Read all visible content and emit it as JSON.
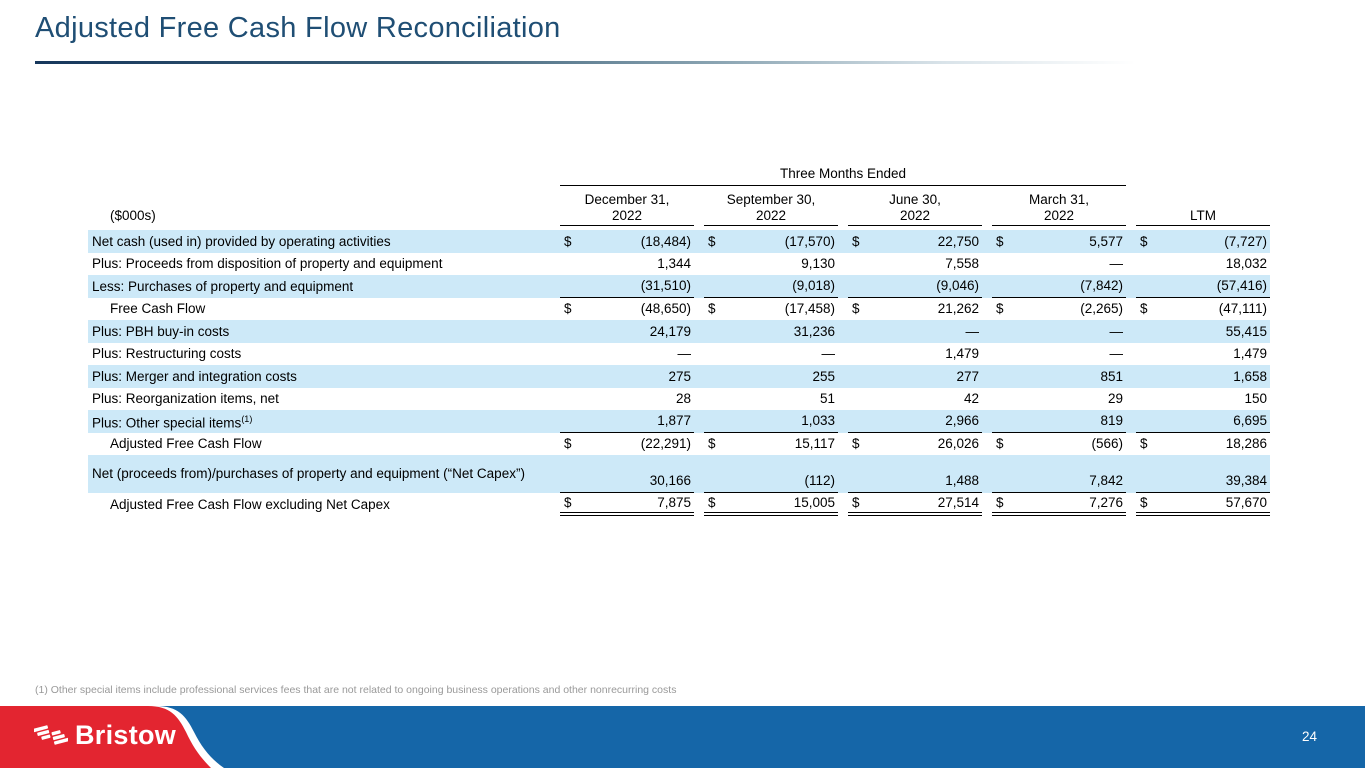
{
  "slide": {
    "title": "Adjusted Free Cash Flow Reconciliation",
    "footnote": "(1) Other special items include professional services fees that are not related to ongoing business operations and other nonrecurring costs",
    "page_number": "24",
    "logo_text": "Bristow"
  },
  "table": {
    "units_label": "($000s)",
    "span_header": "Three Months Ended",
    "currency_symbol": "$",
    "columns": [
      {
        "line1": "December 31,",
        "line2": "2022"
      },
      {
        "line1": "September 30,",
        "line2": "2022"
      },
      {
        "line1": "June 30,",
        "line2": "2022"
      },
      {
        "line1": "March 31,",
        "line2": "2022"
      }
    ],
    "ltm_label": "LTM",
    "rows": [
      {
        "label": "Net cash (used in) provided by operating activities",
        "highlight": true,
        "dollar": true,
        "values": [
          "(18,484)",
          "(17,570)",
          "22,750",
          "5,577",
          "(7,727)"
        ]
      },
      {
        "label": "Plus: Proceeds from disposition of property and equipment",
        "highlight": false,
        "values": [
          "1,344",
          "9,130",
          "7,558",
          "—",
          "18,032"
        ]
      },
      {
        "label": "Less: Purchases of property and equipment",
        "highlight": true,
        "border": "single",
        "values": [
          "(31,510)",
          "(9,018)",
          "(9,046)",
          "(7,842)",
          "(57,416)"
        ]
      },
      {
        "label": "Free Cash Flow",
        "indent": true,
        "highlight": false,
        "dollar": true,
        "values": [
          "(48,650)",
          "(17,458)",
          "21,262",
          "(2,265)",
          "(47,111)"
        ]
      },
      {
        "label": "Plus: PBH buy-in costs",
        "highlight": true,
        "values": [
          "24,179",
          "31,236",
          "—",
          "—",
          "55,415"
        ]
      },
      {
        "label": "Plus: Restructuring costs",
        "highlight": false,
        "values": [
          "—",
          "—",
          "1,479",
          "—",
          "1,479"
        ]
      },
      {
        "label": "Plus: Merger and integration costs",
        "highlight": true,
        "values": [
          "275",
          "255",
          "277",
          "851",
          "1,658"
        ]
      },
      {
        "label": "Plus: Reorganization items, net",
        "highlight": false,
        "values": [
          "28",
          "51",
          "42",
          "29",
          "150"
        ]
      },
      {
        "label": "Plus: Other special items",
        "sup": "(1)",
        "highlight": true,
        "border": "single",
        "values": [
          "1,877",
          "1,033",
          "2,966",
          "819",
          "6,695"
        ]
      },
      {
        "label": "Adjusted Free Cash Flow",
        "indent": true,
        "highlight": false,
        "dollar": true,
        "values": [
          "(22,291)",
          "15,117",
          "26,026",
          "(566)",
          "18,286"
        ]
      },
      {
        "label": "Net (proceeds from)/purchases of property and equipment (“Net Capex”)",
        "highlight": true,
        "tall": true,
        "border": "single",
        "values": [
          "30,166",
          "(112)",
          "1,488",
          "7,842",
          "39,384"
        ]
      },
      {
        "label": "Adjusted Free Cash Flow excluding Net Capex",
        "indent": true,
        "highlight": false,
        "dollar": true,
        "border": "double",
        "values": [
          "7,875",
          "15,005",
          "27,514",
          "7,276",
          "57,670"
        ]
      }
    ]
  },
  "colors": {
    "title_blue": "#1f4e74",
    "row_highlight": "#cde9f8",
    "footer_blue": "#1566a8",
    "logo_red": "#e32530"
  }
}
